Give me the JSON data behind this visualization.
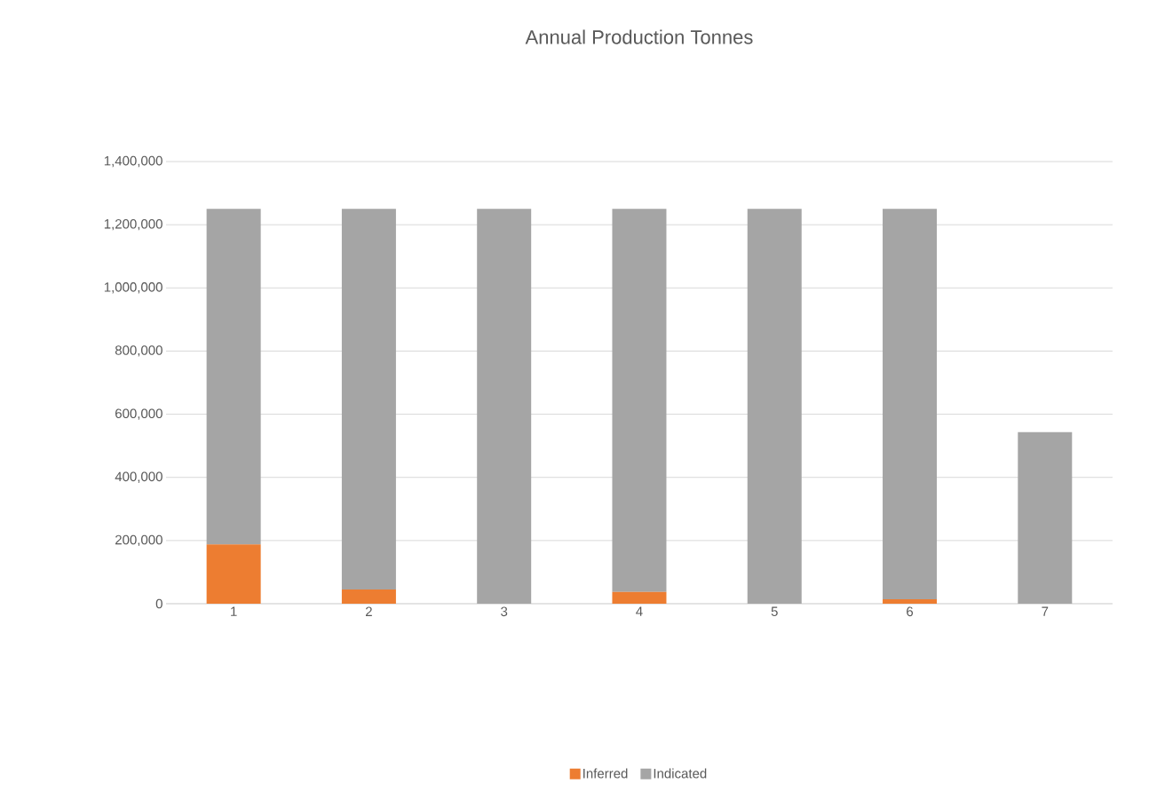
{
  "chart_data": {
    "type": "bar",
    "title": "Annual Production Tonnes",
    "stacked": true,
    "categories": [
      "1",
      "2",
      "3",
      "4",
      "5",
      "6",
      "7"
    ],
    "series": [
      {
        "name": "Inferred",
        "color": "#ed7d31",
        "values": [
          188000,
          45000,
          0,
          37000,
          0,
          14000,
          0
        ]
      },
      {
        "name": "Indicated",
        "color": "#a5a5a5",
        "values": [
          1062000,
          1205000,
          1250000,
          1213000,
          1250000,
          1236000,
          543000
        ]
      }
    ],
    "ylim": [
      0,
      1400000
    ],
    "yticks": [
      {
        "value": 0,
        "label": "0"
      },
      {
        "value": 200000,
        "label": "200,000"
      },
      {
        "value": 400000,
        "label": "400,000"
      },
      {
        "value": 600000,
        "label": "600,000"
      },
      {
        "value": 800000,
        "label": "800,000"
      },
      {
        "value": 1000000,
        "label": "1,000,000"
      },
      {
        "value": 1200000,
        "label": "1,200,000"
      },
      {
        "value": 1400000,
        "label": "1,400,000"
      }
    ],
    "grid": "y",
    "legend": "bottom"
  }
}
